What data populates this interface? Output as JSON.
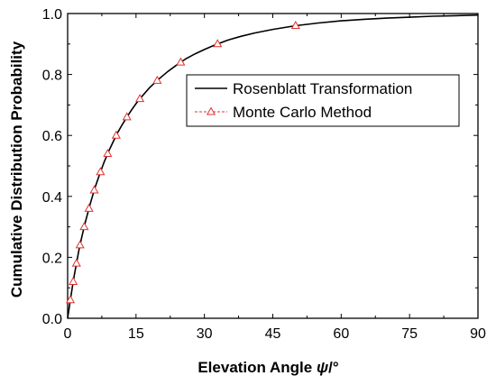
{
  "chart_data": {
    "type": "line",
    "xlabel": "Elevation Angle ψ/°",
    "ylabel": "Cumulative Distribution Probability",
    "xlim": [
      0,
      90
    ],
    "ylim": [
      0,
      1.0
    ],
    "xticks": [
      0,
      15,
      30,
      45,
      60,
      75,
      90
    ],
    "yticks": [
      0.0,
      0.2,
      0.4,
      0.6,
      0.8,
      1.0
    ],
    "xtick_labels": [
      "0",
      "15",
      "30",
      "45",
      "60",
      "75",
      "90"
    ],
    "ytick_labels": [
      "0.0",
      "0.2",
      "0.4",
      "0.6",
      "0.8",
      "1.0"
    ],
    "grid": false,
    "legend_position": "upper-right",
    "series": [
      {
        "name": "Rosenblatt Transformation",
        "style": "solid-line",
        "color": "#000000",
        "x": [
          0,
          0.5,
          1,
          1.5,
          2,
          2.5,
          3,
          3.5,
          4,
          5,
          6,
          7,
          8,
          9,
          10,
          11,
          12,
          13,
          14,
          15,
          16,
          18,
          20,
          22,
          24,
          26,
          28,
          30,
          32,
          35,
          38,
          41,
          45,
          50,
          55,
          60,
          65,
          70,
          75,
          80,
          85,
          90
        ],
        "y": [
          0.0,
          0.05,
          0.1,
          0.145,
          0.185,
          0.225,
          0.26,
          0.292,
          0.322,
          0.378,
          0.428,
          0.472,
          0.512,
          0.548,
          0.58,
          0.61,
          0.636,
          0.66,
          0.683,
          0.704,
          0.723,
          0.757,
          0.785,
          0.81,
          0.832,
          0.852,
          0.868,
          0.882,
          0.895,
          0.912,
          0.925,
          0.936,
          0.948,
          0.96,
          0.969,
          0.976,
          0.981,
          0.985,
          0.988,
          0.991,
          0.993,
          0.995
        ]
      },
      {
        "name": "Monte Carlo Method",
        "style": "dashed-line-triangle-markers",
        "color": "#e03030",
        "x": [
          0,
          0.5,
          1,
          1.5,
          2,
          2.5,
          3,
          3.5,
          4,
          5,
          6,
          7,
          8,
          9,
          10,
          11,
          12,
          13,
          14,
          15,
          16,
          18,
          20,
          22,
          24,
          26,
          28,
          30,
          32,
          35,
          38,
          41,
          45,
          50,
          55,
          60,
          65,
          70,
          75,
          80,
          85,
          90
        ],
        "y": [
          0.0,
          0.05,
          0.1,
          0.145,
          0.185,
          0.225,
          0.26,
          0.292,
          0.322,
          0.378,
          0.428,
          0.472,
          0.512,
          0.548,
          0.58,
          0.61,
          0.636,
          0.66,
          0.683,
          0.704,
          0.723,
          0.757,
          0.785,
          0.81,
          0.832,
          0.852,
          0.868,
          0.882,
          0.895,
          0.912,
          0.925,
          0.936,
          0.948,
          0.96,
          0.969,
          0.976,
          0.981,
          0.985,
          0.988,
          0.991,
          0.993,
          0.995
        ],
        "marker_y": [
          0.06,
          0.12,
          0.18,
          0.24,
          0.3,
          0.36,
          0.42,
          0.48,
          0.54,
          0.6,
          0.66,
          0.72,
          0.78,
          0.84,
          0.9,
          0.96
        ]
      }
    ]
  }
}
